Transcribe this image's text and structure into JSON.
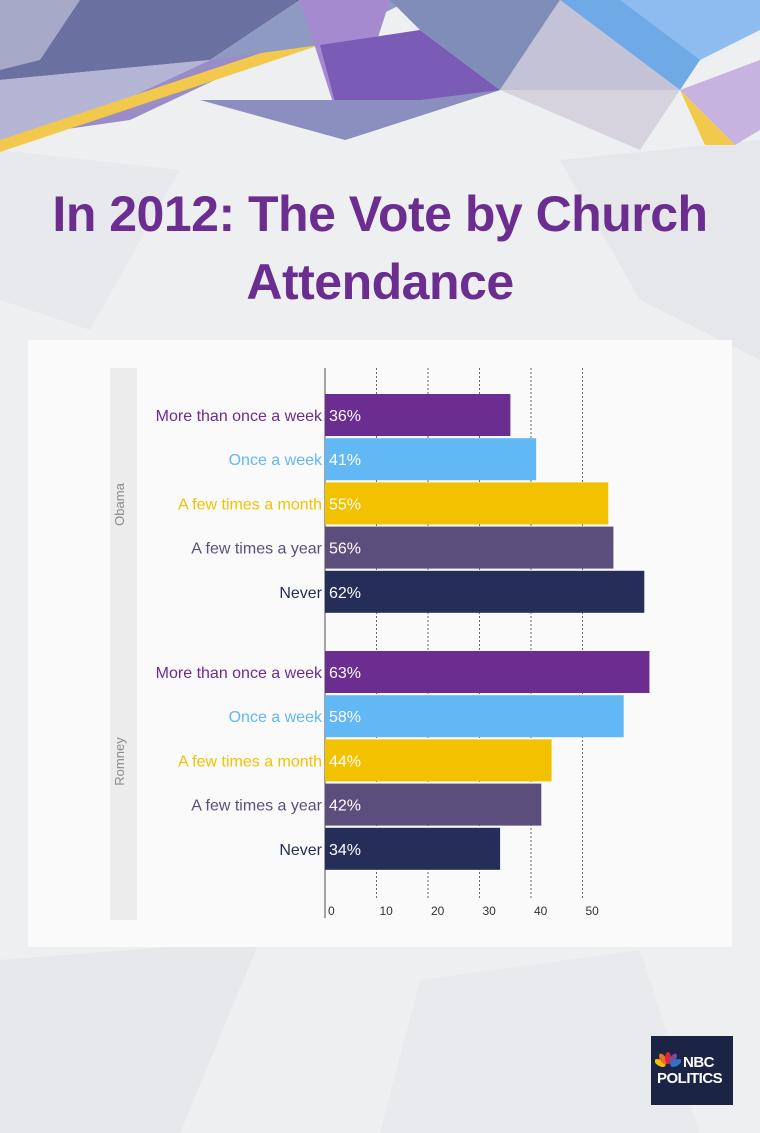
{
  "title_line1": "In 2012: The Vote by Church",
  "title_line2": "Attendance",
  "logo": {
    "line1": "NBC",
    "line2": "POLITICS"
  },
  "colors": {
    "title": "#6b2d90",
    "categories": [
      "#6b2d90",
      "#62b8f5",
      "#f2c200",
      "#5c4e7c",
      "#252e58"
    ],
    "labels": [
      "#6b2d90",
      "#62b8f5",
      "#f2c200",
      "#5c4e7c",
      "#252e58"
    ]
  },
  "chart_data": {
    "type": "bar",
    "orientation": "horizontal",
    "categories": [
      "More than once a week",
      "Once a week",
      "A few times a month",
      "A few times a year",
      "Never"
    ],
    "groups": [
      {
        "name": "Obama",
        "values": [
          36,
          41,
          55,
          56,
          62
        ],
        "labels": [
          "36%",
          "41%",
          "55%",
          "56%",
          "62%"
        ]
      },
      {
        "name": "Romney",
        "values": [
          63,
          58,
          44,
          42,
          34
        ],
        "labels": [
          "63%",
          "58%",
          "44%",
          "42%",
          "34%"
        ]
      }
    ],
    "xticks": [
      0,
      10,
      20,
      30,
      40,
      50
    ],
    "xlim": [
      0,
      60
    ],
    "grid": true
  }
}
